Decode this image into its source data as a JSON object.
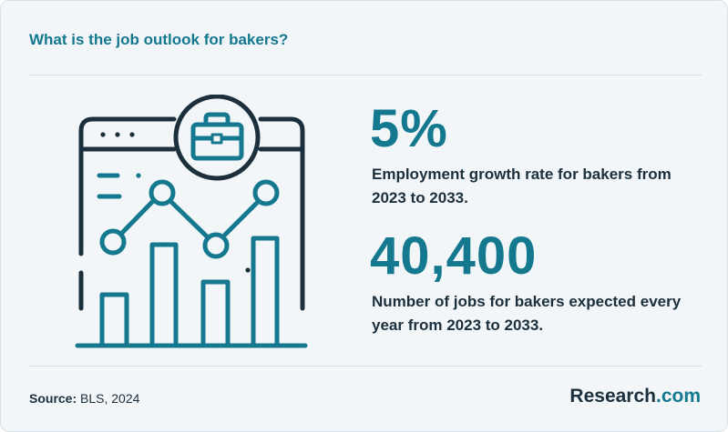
{
  "header": {
    "title": "What is the job outlook for bakers?"
  },
  "stats": [
    {
      "value": "5%",
      "description": "Employment growth rate for bakers from 2023 to 2033."
    },
    {
      "value": "40,400",
      "description": "Number of jobs for bakers expected every year from 2023 to 2033."
    }
  ],
  "footer": {
    "source_label": "Source:",
    "source_text": "BLS, 2024",
    "logo_main": "Research",
    "logo_accent": ".com"
  },
  "colors": {
    "accent": "#14788f",
    "text": "#1b2f3c",
    "background": "#f3f6f8"
  },
  "illustration": {
    "icon": "briefcase-chart-icon"
  }
}
